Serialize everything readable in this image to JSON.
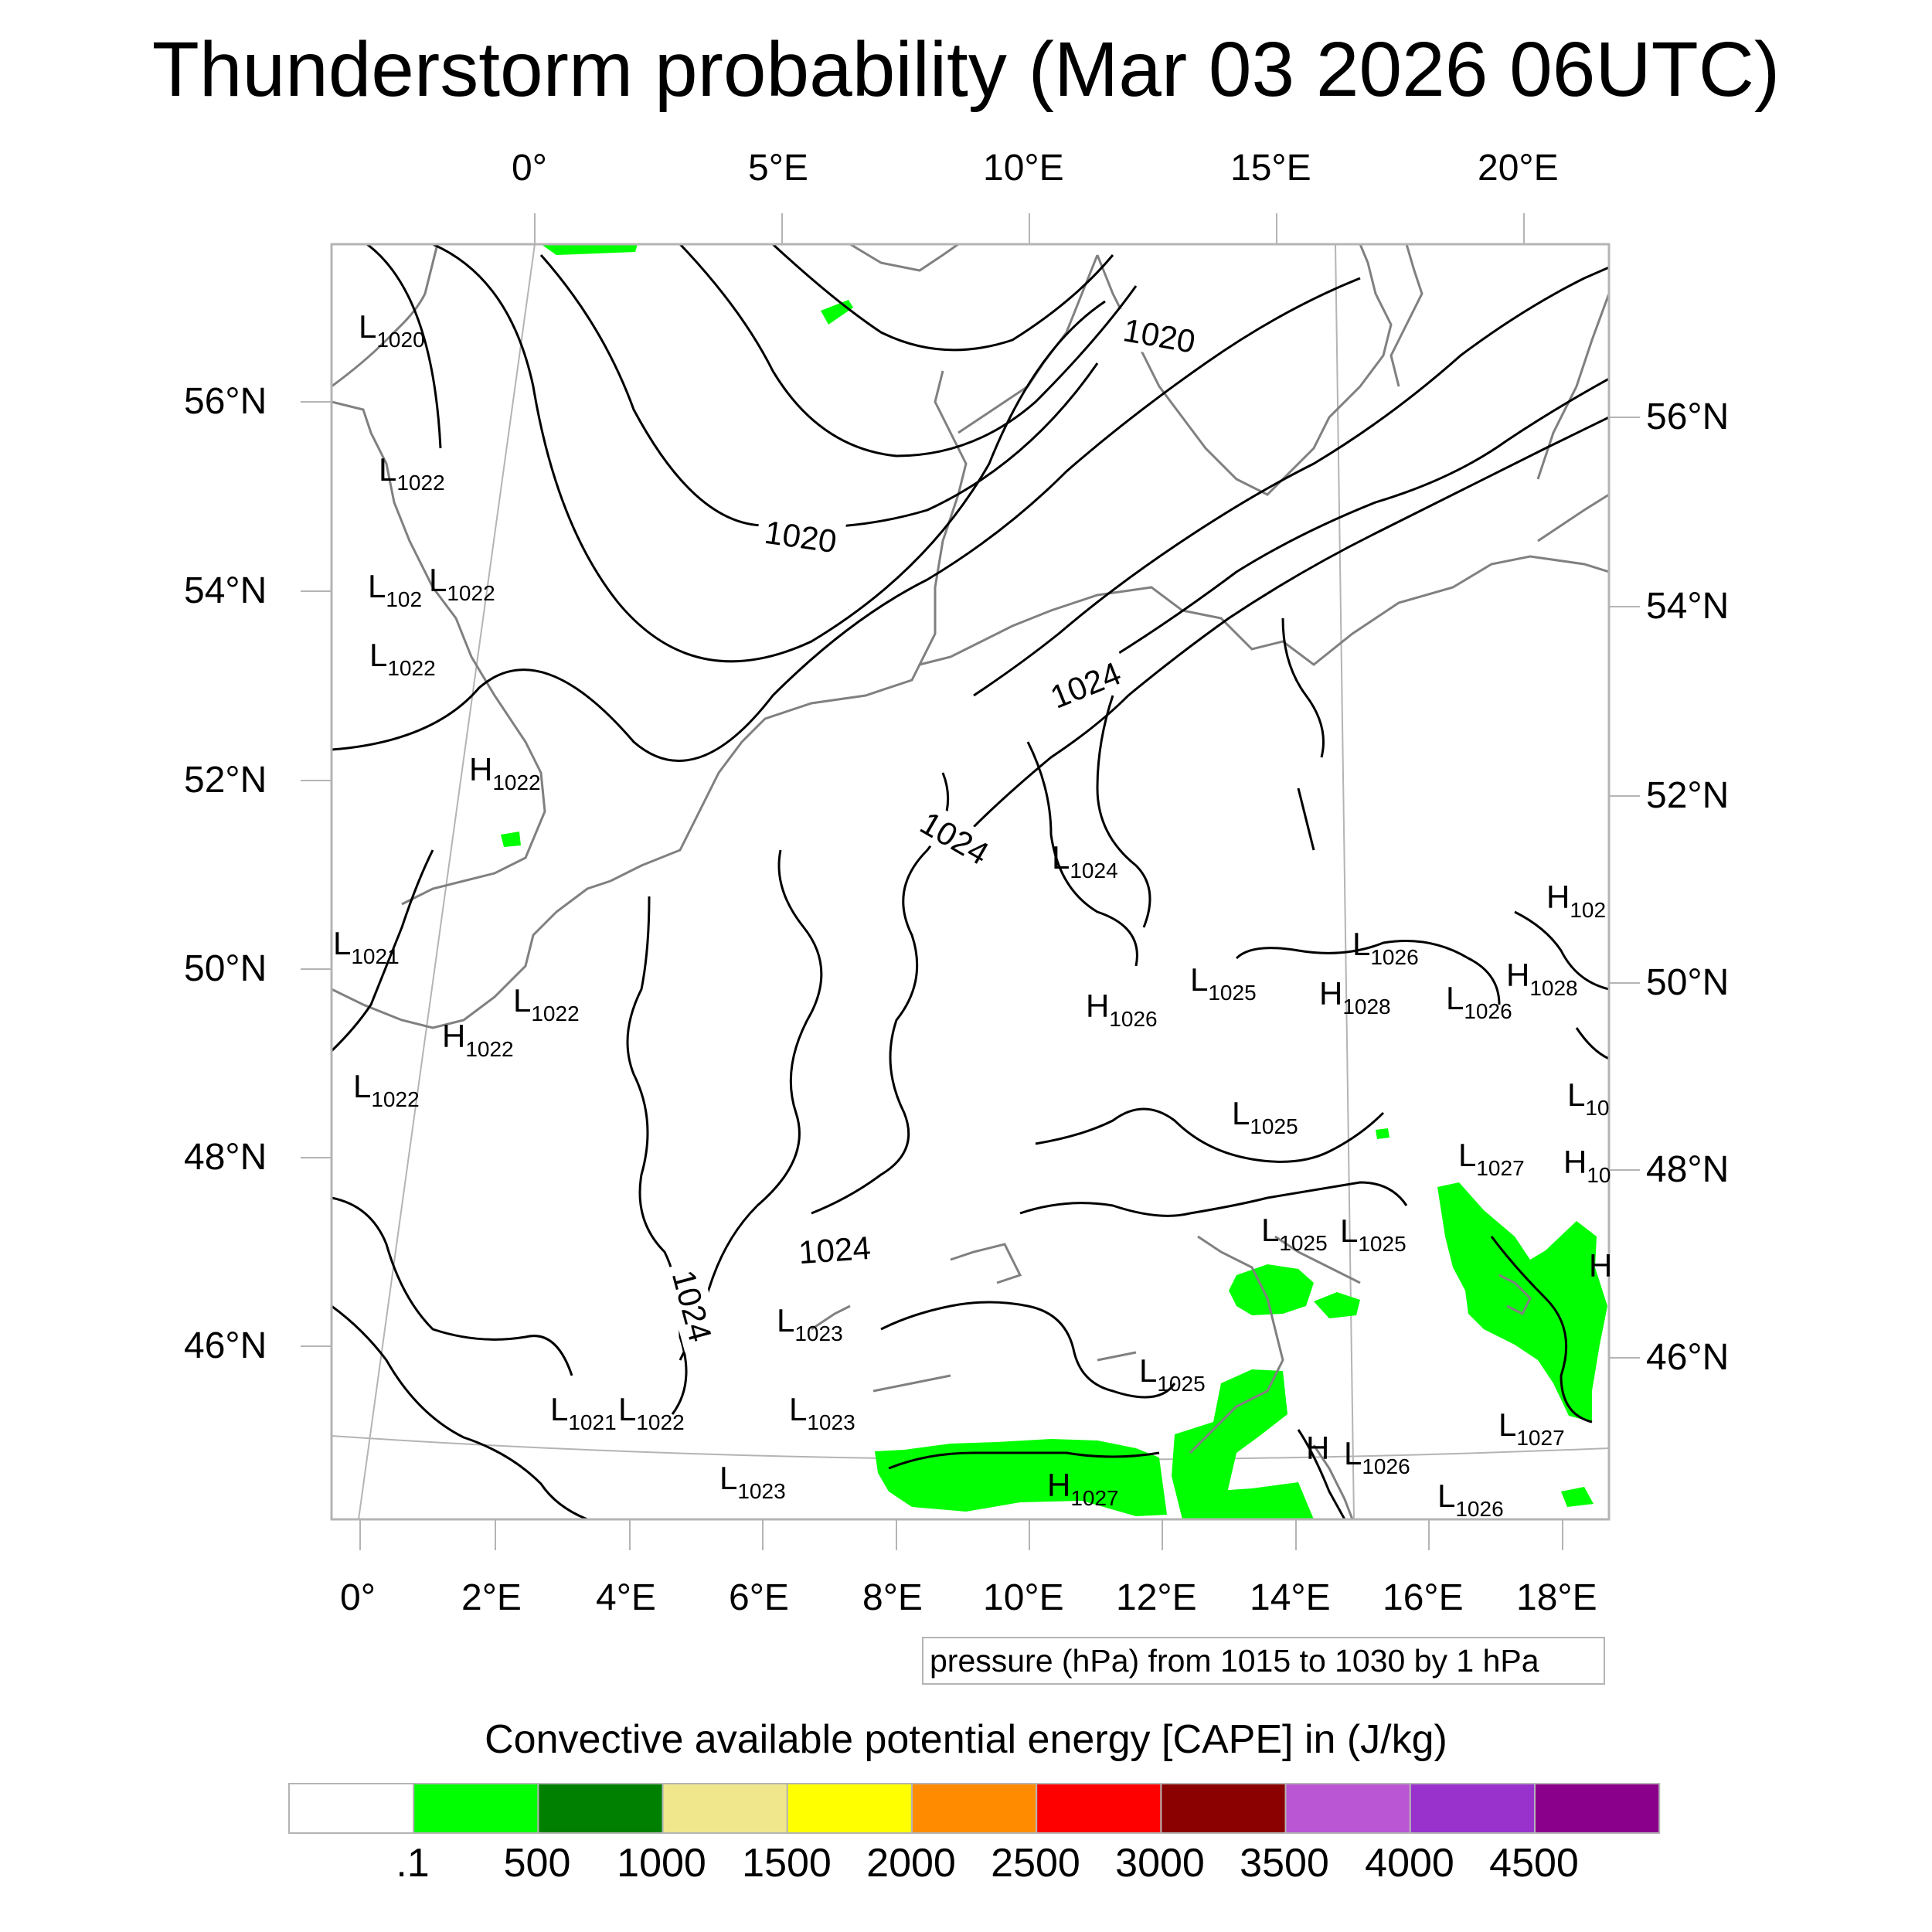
{
  "title": "Thunderstorm probability (Mar 03 2026 06UTC)",
  "top_axis_labels": [
    "0°",
    "5°E",
    "10°E",
    "15°E",
    "20°E"
  ],
  "bottom_axis_labels": [
    "0°",
    "2°E",
    "4°E",
    "6°E",
    "8°E",
    "10°E",
    "12°E",
    "14°E",
    "16°E",
    "18°E"
  ],
  "left_axis_labels": [
    "56°N",
    "54°N",
    "52°N",
    "50°N",
    "48°N",
    "46°N"
  ],
  "right_axis_labels": [
    "56°N",
    "54°N",
    "52°N",
    "50°N",
    "48°N",
    "46°N"
  ],
  "isobar_labels": [
    "1020",
    "1020",
    "1024",
    "1024",
    "1024",
    "1024"
  ],
  "pressure_centers": [
    {
      "type": "L",
      "value": "1020"
    },
    {
      "type": "L",
      "value": "1022"
    },
    {
      "type": "L",
      "value": "102"
    },
    {
      "type": "L",
      "value": "1022"
    },
    {
      "type": "L",
      "value": "1022"
    },
    {
      "type": "H",
      "value": "1022"
    },
    {
      "type": "L",
      "value": "1024"
    },
    {
      "type": "H",
      "value": "102"
    },
    {
      "type": "L",
      "value": "1021"
    },
    {
      "type": "L",
      "value": "1022"
    },
    {
      "type": "H",
      "value": "1022"
    },
    {
      "type": "L",
      "value": "1026"
    },
    {
      "type": "L",
      "value": "1025"
    },
    {
      "type": "H",
      "value": "1026"
    },
    {
      "type": "H",
      "value": "1028"
    },
    {
      "type": "H",
      "value": "1028"
    },
    {
      "type": "L",
      "value": "1026"
    },
    {
      "type": "L",
      "value": "1022"
    },
    {
      "type": "L",
      "value": "10"
    },
    {
      "type": "L",
      "value": "1025"
    },
    {
      "type": "L",
      "value": "1027"
    },
    {
      "type": "H",
      "value": "10"
    },
    {
      "type": "L",
      "value": "1025"
    },
    {
      "type": "L",
      "value": "1025"
    },
    {
      "type": "H",
      "value": ""
    },
    {
      "type": "L",
      "value": "1023"
    },
    {
      "type": "L",
      "value": "1025"
    },
    {
      "type": "L",
      "value": "1021"
    },
    {
      "type": "L",
      "value": "1022"
    },
    {
      "type": "L",
      "value": "1023"
    },
    {
      "type": "L",
      "value": "1027"
    },
    {
      "type": "H",
      "value": ""
    },
    {
      "type": "L",
      "value": "1026"
    },
    {
      "type": "L",
      "value": "1023"
    },
    {
      "type": "H",
      "value": "1027"
    },
    {
      "type": "L",
      "value": "1026"
    }
  ],
  "contour_note": "pressure (hPa) from 1015 to 1030 by 1 hPa",
  "colorbar": {
    "title": "Convective available potential energy [CAPE] in (J/kg)",
    "colors": [
      "#ffffff",
      "#00ff00",
      "#008000",
      "#f0e68c",
      "#ffff00",
      "#ff8c00",
      "#ff0000",
      "#8b0000",
      "#ba55d3",
      "#9932cc",
      "#8b008b"
    ],
    "labels": [
      ".1",
      "500",
      "1000",
      "1500",
      "2000",
      "2500",
      "3000",
      "3500",
      "4000",
      "4500"
    ]
  },
  "colors": {
    "cape_area": "#00ff00",
    "coastline": "#808080",
    "isobar": "#000000",
    "frame": "#b4b4b4"
  }
}
